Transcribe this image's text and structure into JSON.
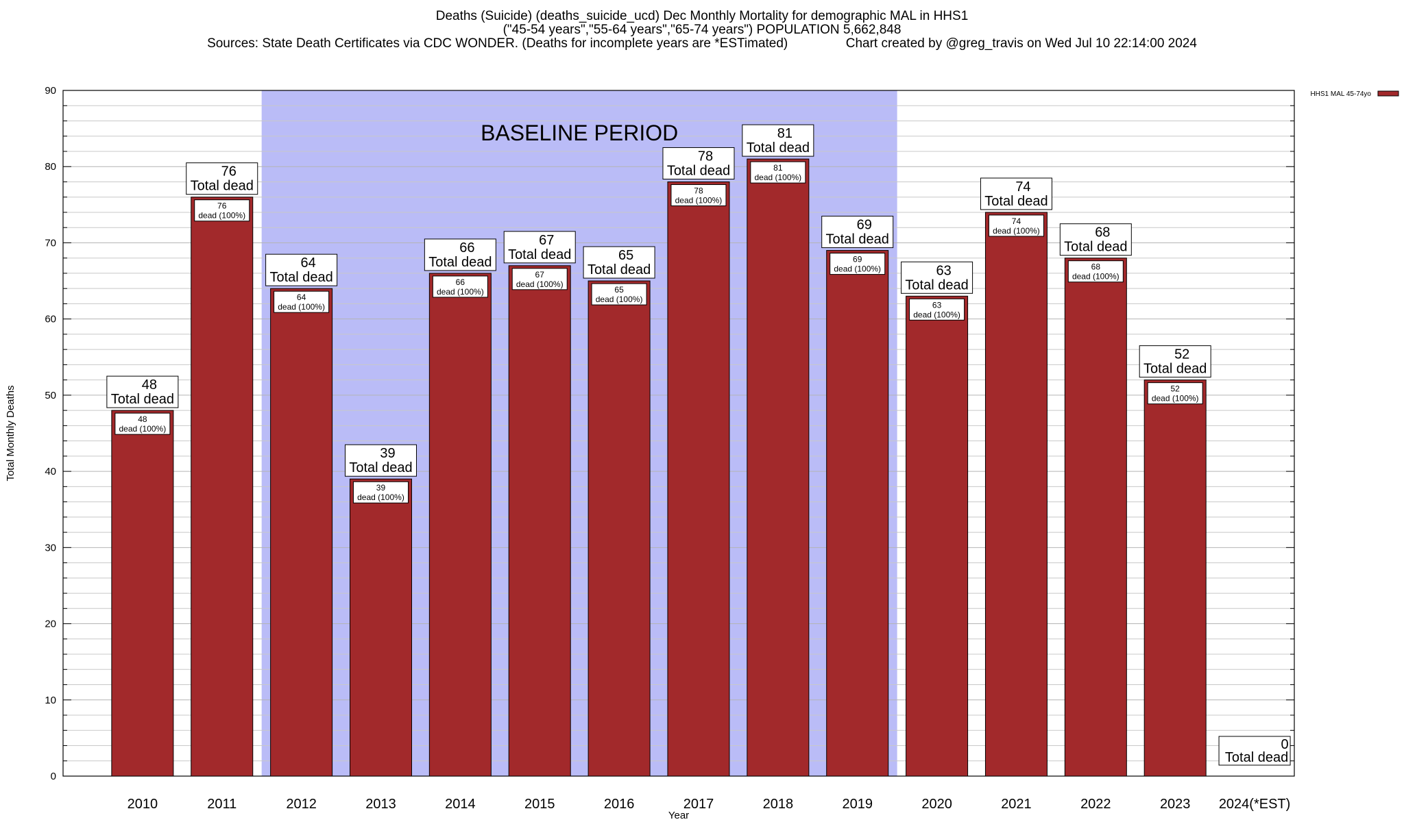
{
  "header": {
    "line1": "Deaths (Suicide) (deaths_suicide_ucd) Dec Monthly Mortality for demographic MAL in HHS1",
    "line2": "(\"45-54 years\",\"55-64 years\",\"65-74 years\") POPULATION 5,662,848",
    "line3_left": "Sources: State Death Certificates via CDC WONDER. (Deaths for incomplete years are *ESTimated)",
    "line3_right": "Chart created by @greg_travis on Wed Jul 10 22:14:00 2024"
  },
  "colors": {
    "bar": "#a2292b",
    "baseline_band": "#babcf7",
    "grid": "#c8c8c8"
  },
  "chart_data": {
    "type": "bar",
    "title": "Deaths (Suicide) (deaths_suicide_ucd) Dec Monthly Mortality for demographic MAL in HHS1",
    "xlabel": "Year",
    "ylabel": "Total Monthly Deaths",
    "ylim": [
      0,
      90
    ],
    "yticks": [
      0,
      10,
      20,
      30,
      40,
      50,
      60,
      70,
      80,
      90
    ],
    "grid": true,
    "legend": {
      "position": "top-right",
      "entries": [
        "HHS1 MAL 45-74yo"
      ]
    },
    "baseline": {
      "label": "BASELINE PERIOD",
      "from": "2012",
      "to": "2019"
    },
    "top_label_suffix": "Total dead",
    "inner_label_suffix": "dead (100%)",
    "categories": [
      "2010",
      "2011",
      "2012",
      "2013",
      "2014",
      "2015",
      "2016",
      "2017",
      "2018",
      "2019",
      "2020",
      "2021",
      "2022",
      "2023",
      "2024(*EST)"
    ],
    "series": [
      {
        "name": "HHS1 MAL 45-74yo",
        "values": [
          48,
          76,
          64,
          39,
          66,
          67,
          65,
          78,
          81,
          69,
          63,
          74,
          68,
          52,
          0
        ]
      }
    ]
  }
}
